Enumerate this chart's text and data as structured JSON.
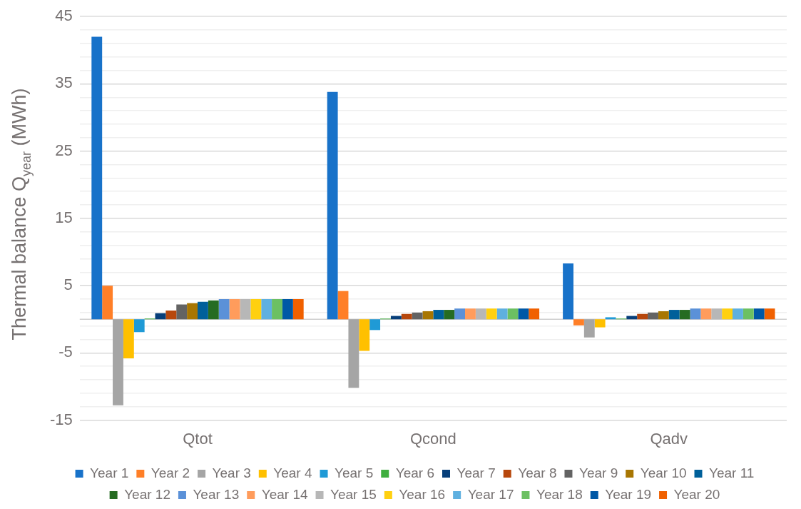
{
  "chart_data": {
    "type": "bar",
    "ylabel": "Thermal balance Q$_{year}$ (MWh)",
    "categories": [
      "Qtot",
      "Qcond",
      "Qadv"
    ],
    "ylim": [
      -15,
      45
    ],
    "yticks": [
      -15,
      {
        "value": -13,
        "label": null
      },
      {
        "value": -11,
        "label": null
      },
      {
        "value": -9,
        "label": null
      },
      {
        "value": -7,
        "label": null
      },
      -5,
      {
        "value": -3,
        "label": null
      },
      {
        "value": -1,
        "label": null
      },
      {
        "value": 1,
        "label": null
      },
      {
        "value": 3,
        "label": null
      },
      5,
      {
        "value": 7,
        "label": null
      },
      {
        "value": 9,
        "label": null
      },
      {
        "value": 11,
        "label": null
      },
      {
        "value": 13,
        "label": null
      },
      15,
      {
        "value": 17,
        "label": null
      },
      {
        "value": 19,
        "label": null
      },
      {
        "value": 21,
        "label": null
      },
      {
        "value": 23,
        "label": null
      },
      25,
      {
        "value": 27,
        "label": null
      },
      {
        "value": 29,
        "label": null
      },
      {
        "value": 31,
        "label": null
      },
      {
        "value": 33,
        "label": null
      },
      35,
      {
        "value": 37,
        "label": null
      },
      {
        "value": 39,
        "label": null
      },
      {
        "value": 41,
        "label": null
      },
      {
        "value": 43,
        "label": null
      },
      45
    ],
    "grid": "y",
    "legend": "bottom",
    "series": [
      {
        "name": "Year 1",
        "color": "#1872c9",
        "values": [
          42,
          33.8,
          8.3
        ]
      },
      {
        "name": "Year 2",
        "color": "#ff7f27",
        "values": [
          5,
          4.2,
          -0.9
        ]
      },
      {
        "name": "Year 3",
        "color": "#a5a5a5",
        "values": [
          -12.8,
          -10.2,
          -2.7
        ]
      },
      {
        "name": "Year 4",
        "color": "#ffc000",
        "values": [
          -5.8,
          -4.7,
          -1.2
        ]
      },
      {
        "name": "Year 5",
        "color": "#1f9ad6",
        "values": [
          -1.9,
          -1.6,
          0.3
        ]
      },
      {
        "name": "Year 6",
        "color": "#3fae3f",
        "values": [
          0.1,
          0.1,
          0.1
        ]
      },
      {
        "name": "Year 7",
        "color": "#073f7a",
        "values": [
          0.9,
          0.5,
          0.5
        ]
      },
      {
        "name": "Year 8",
        "color": "#b7470c",
        "values": [
          1.3,
          0.8,
          0.8
        ]
      },
      {
        "name": "Year 9",
        "color": "#636363",
        "values": [
          2.2,
          1,
          1
        ]
      },
      {
        "name": "Year 10",
        "color": "#a87602",
        "values": [
          2.4,
          1.2,
          1.2
        ]
      },
      {
        "name": "Year 11",
        "color": "#00609a",
        "values": [
          2.6,
          1.4,
          1.4
        ]
      },
      {
        "name": "Year 12",
        "color": "#266c22",
        "values": [
          2.8,
          1.4,
          1.4
        ]
      },
      {
        "name": "Year 13",
        "color": "#5b91d8",
        "values": [
          3,
          1.6,
          1.6
        ]
      },
      {
        "name": "Year 14",
        "color": "#ff9c5c",
        "values": [
          3,
          1.6,
          1.6
        ]
      },
      {
        "name": "Year 15",
        "color": "#b7b7b7",
        "values": [
          3,
          1.6,
          1.6
        ]
      },
      {
        "name": "Year 16",
        "color": "#ffd010",
        "values": [
          3,
          1.6,
          1.6
        ]
      },
      {
        "name": "Year 17",
        "color": "#5fb0e0",
        "values": [
          3,
          1.6,
          1.6
        ]
      },
      {
        "name": "Year 18",
        "color": "#6cc062",
        "values": [
          3,
          1.6,
          1.6
        ]
      },
      {
        "name": "Year 19",
        "color": "#0058a6",
        "values": [
          3,
          1.6,
          1.6
        ]
      },
      {
        "name": "Year 20",
        "color": "#f06000",
        "values": [
          3,
          1.6,
          1.6
        ]
      }
    ]
  }
}
